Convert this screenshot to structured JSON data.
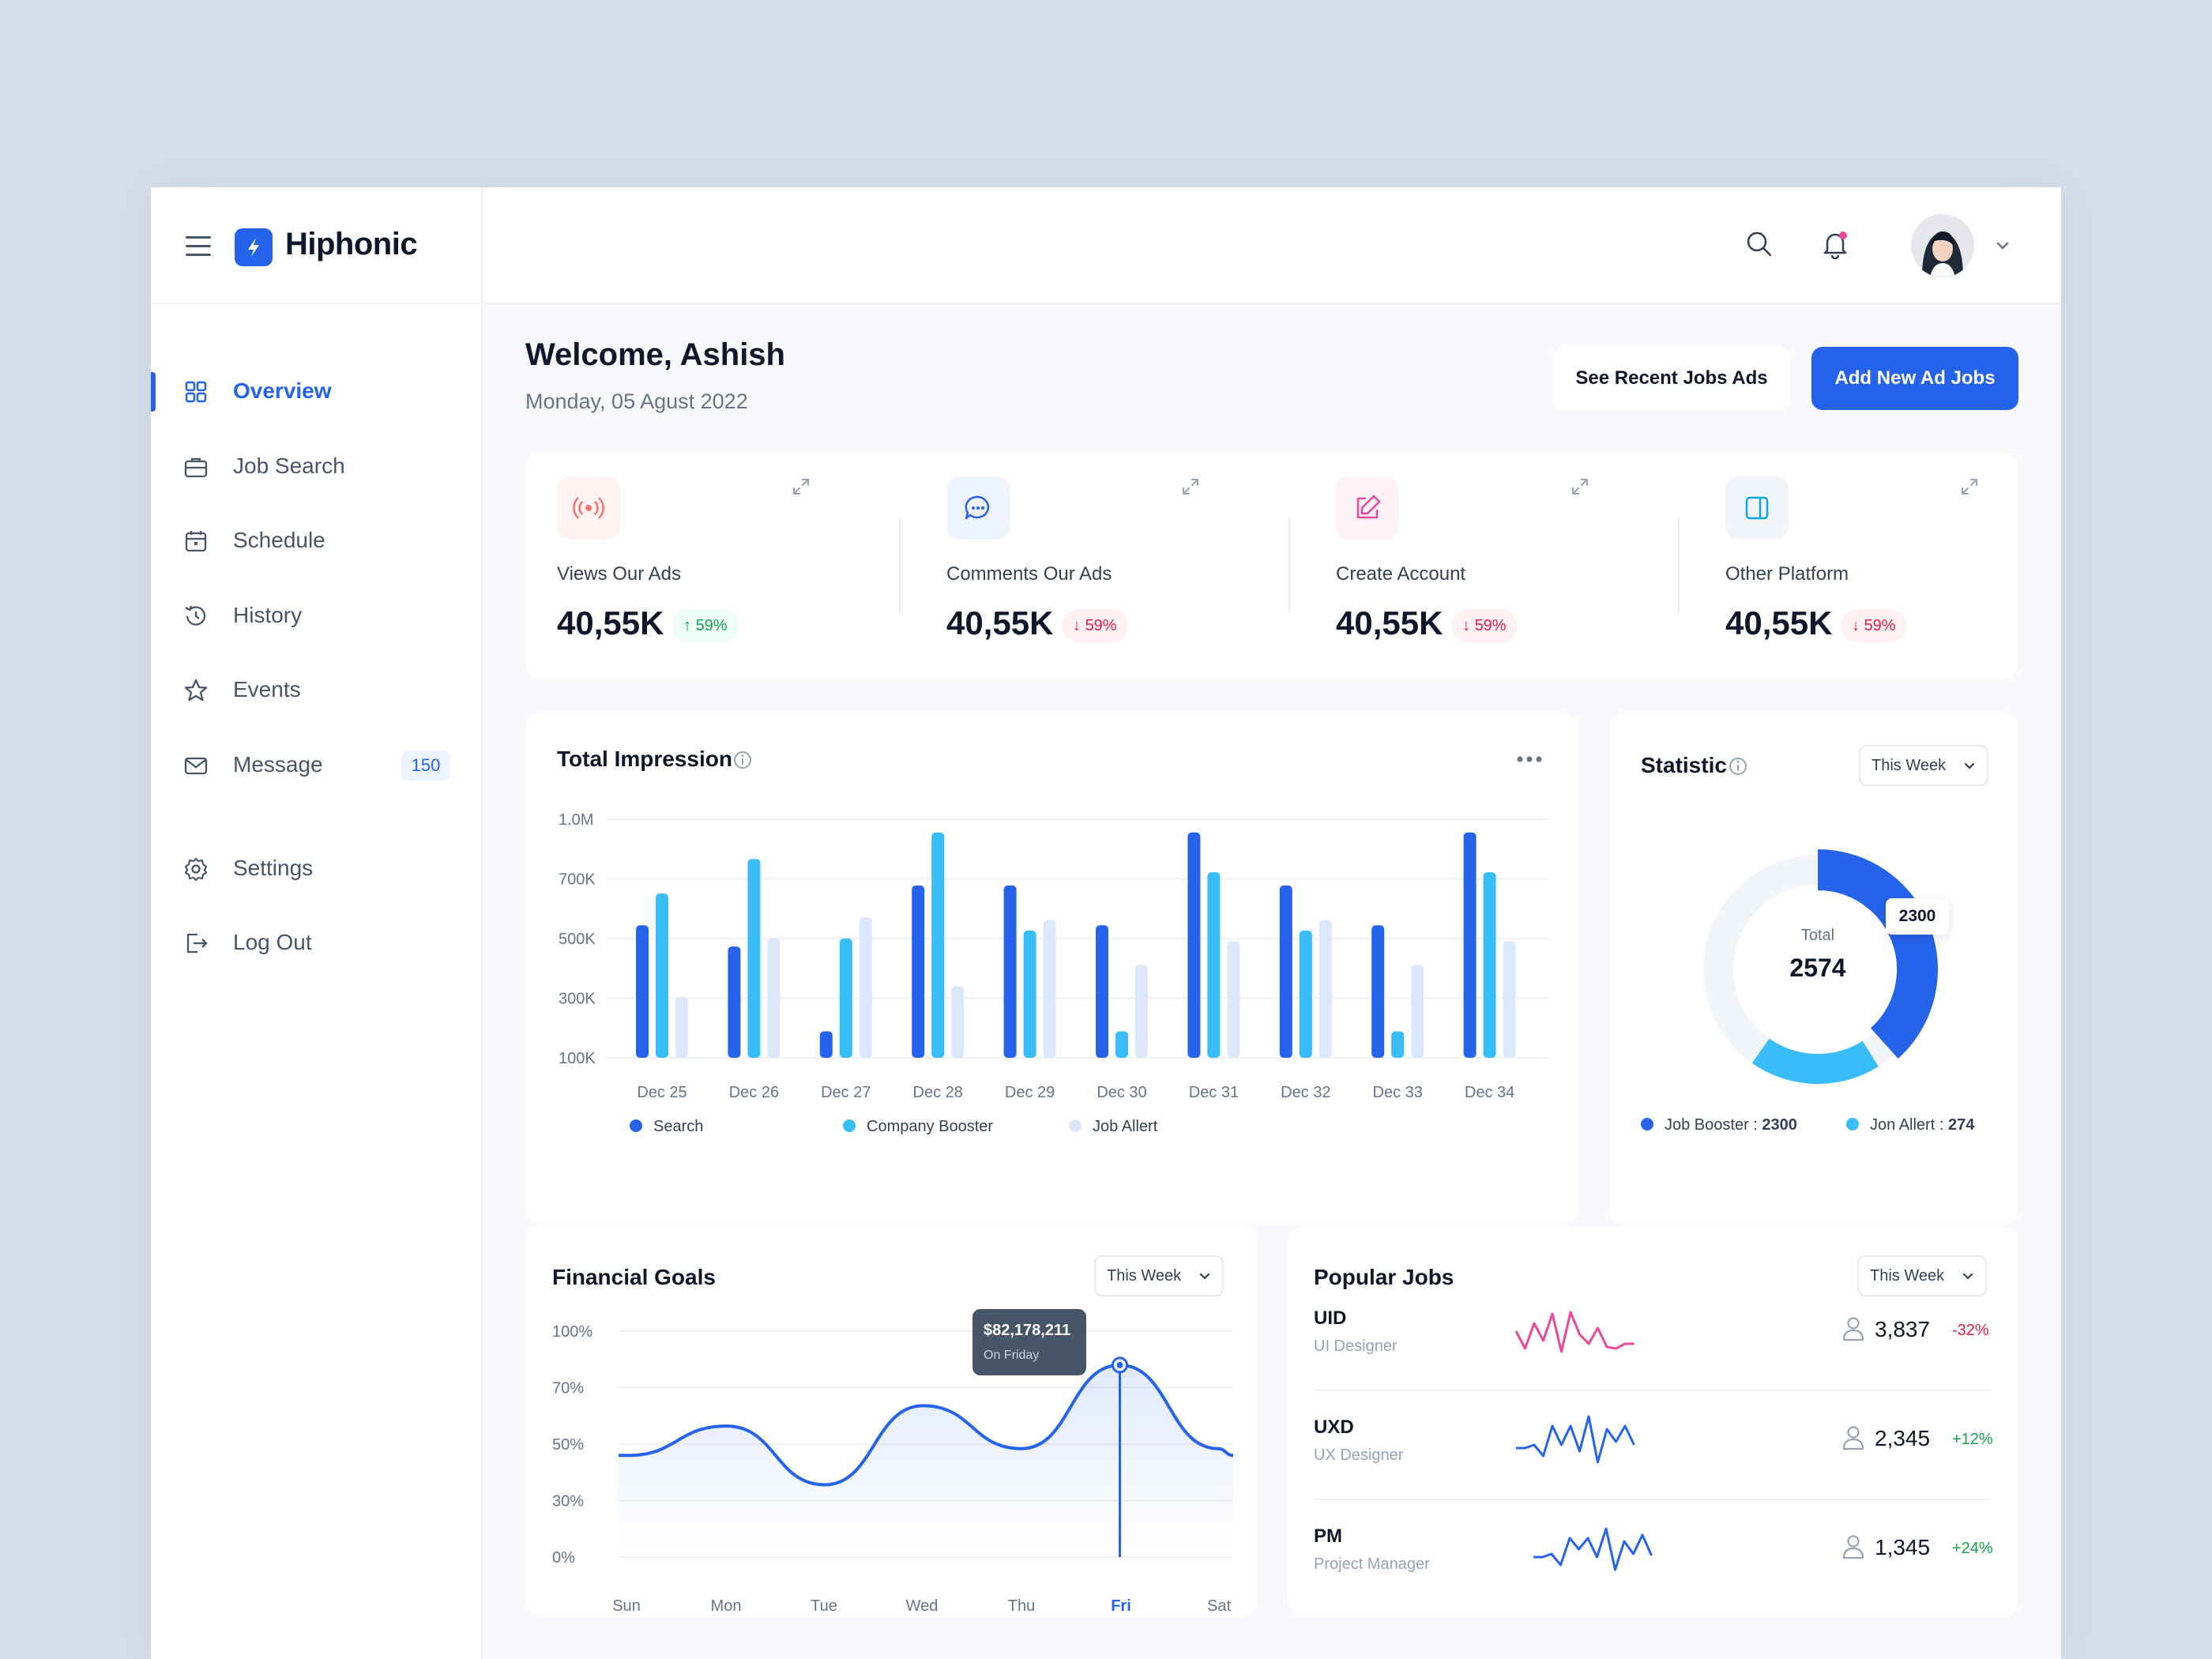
{
  "brand": {
    "name": "Hiphonic"
  },
  "sidebar": {
    "items": [
      {
        "label": "Overview",
        "icon": "grid-icon",
        "active": true
      },
      {
        "label": "Job Search",
        "icon": "briefcase-icon"
      },
      {
        "label": "Schedule",
        "icon": "calendar-icon"
      },
      {
        "label": "History",
        "icon": "history-icon"
      },
      {
        "label": "Events",
        "icon": "star-icon"
      },
      {
        "label": "Message",
        "icon": "mail-icon",
        "badge": "150"
      }
    ],
    "bottom": [
      {
        "label": "Settings",
        "icon": "gear-icon"
      },
      {
        "label": "Log Out",
        "icon": "logout-icon"
      }
    ]
  },
  "header": {
    "welcome": "Welcome, Ashish",
    "date": "Monday, 05 Agust 2022",
    "btn_recent": "See Recent Jobs Ads",
    "btn_add": "Add New Ad Jobs"
  },
  "stats": [
    {
      "label": "Views Our Ads",
      "value": "40,55K",
      "change": "59%",
      "direction": "up",
      "icon": "broadcast-icon",
      "color": "#f87171",
      "bg": "#fef2f2"
    },
    {
      "label": "Comments Our Ads",
      "value": "40,55K",
      "change": "59%",
      "direction": "down",
      "icon": "chat-icon",
      "color": "#2563eb",
      "bg": "#eef4ff"
    },
    {
      "label": "Create Account",
      "value": "40,55K",
      "change": "59%",
      "direction": "down",
      "icon": "edit-icon",
      "color": "#ec4899",
      "bg": "#fdf2f8"
    },
    {
      "label": "Other Platform",
      "value": "40,55K",
      "change": "59%",
      "direction": "down",
      "icon": "panel-icon",
      "color": "#0ea5e9",
      "bg": "#f1f5f9"
    }
  ],
  "impression": {
    "title": "Total Impression",
    "legend": [
      "Search",
      "Company Booster",
      "Job Allert"
    ]
  },
  "statistic": {
    "title": "Statistic",
    "filter": "This Week",
    "total_label": "Total",
    "total_value": "2574",
    "callout": "2300",
    "legend": [
      {
        "label": "Job Booster :",
        "value": "2300"
      },
      {
        "label": "Jon Allert :",
        "value": "274"
      }
    ]
  },
  "financial": {
    "title": "Financial Goals",
    "filter": "This Week",
    "tooltip_value": "$82,178,211",
    "tooltip_sub": "On Friday"
  },
  "popular": {
    "title": "Popular Jobs",
    "filter": "This Week",
    "jobs": [
      {
        "code": "UID",
        "name": "UI Designer",
        "count": "3,837",
        "change": "-32%",
        "color": "#ec4899",
        "trend": "down"
      },
      {
        "code": "UXD",
        "name": "UX Designer",
        "count": "2,345",
        "change": "+12%",
        "color": "#2563eb",
        "trend": "up"
      },
      {
        "code": "PM",
        "name": "Project Manager",
        "count": "1,345",
        "change": "+24%",
        "color": "#2563eb",
        "trend": "up"
      }
    ]
  },
  "chart_data": [
    {
      "type": "bar",
      "title": "Total Impression",
      "categories": [
        "Dec 25",
        "Dec 26",
        "Dec 27",
        "Dec 28",
        "Dec 29",
        "Dec 30",
        "Dec 31",
        "Dec 32",
        "Dec 33",
        "Dec 34"
      ],
      "yticks": [
        "1.0M",
        "700K",
        "500K",
        "300K",
        "100K"
      ],
      "ylim": [
        100,
        1000
      ],
      "series": [
        {
          "name": "Search",
          "color": "#2563eb",
          "values": [
            600,
            520,
            200,
            750,
            750,
            600,
            950,
            750,
            600,
            950
          ]
        },
        {
          "name": "Company Booster",
          "color": "#38bdf8",
          "values": [
            720,
            850,
            550,
            950,
            580,
            200,
            800,
            580,
            200,
            800
          ]
        },
        {
          "name": "Job Allert",
          "color": "#dbe7fb",
          "values": [
            330,
            550,
            630,
            370,
            620,
            450,
            540,
            620,
            450,
            540
          ]
        }
      ],
      "legend": "bottom"
    },
    {
      "type": "pie",
      "title": "Statistic",
      "slices": [
        {
          "name": "Job Booster",
          "value": 2300,
          "color": "#2563eb"
        },
        {
          "name": "Jon Allert",
          "value": 274,
          "color": "#38bdf8"
        }
      ]
    },
    {
      "type": "area",
      "title": "Financial Goals",
      "categories": [
        "Sun",
        "Mon",
        "Tue",
        "Wed",
        "Thu",
        "Fri",
        "Sat"
      ],
      "yticks": [
        "100%",
        "70%",
        "50%",
        "30%",
        "0%"
      ],
      "values": [
        45,
        58,
        32,
        67,
        48,
        85,
        48
      ],
      "highlight": "Fri"
    }
  ]
}
